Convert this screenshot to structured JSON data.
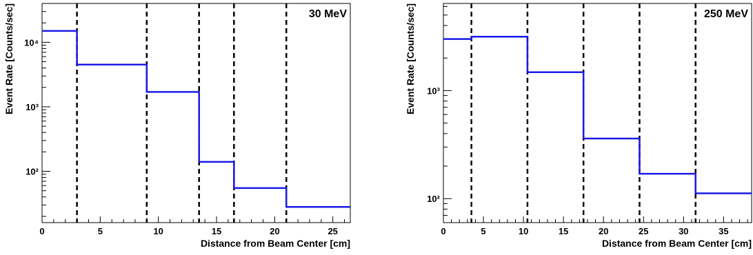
{
  "chart_data": [
    {
      "type": "step",
      "label": "30 MeV",
      "xlabel": "Distance from Beam Center [cm]",
      "ylabel": "Event Rate [Counts/sec]",
      "y_scale": "log",
      "xlim": [
        0,
        26.5
      ],
      "ylim": [
        16,
        40000
      ],
      "x_ticks": [
        0,
        5,
        10,
        15,
        20,
        25
      ],
      "x_tick_labels": [
        "0",
        "5",
        "10",
        "15",
        "20",
        "25"
      ],
      "y_ticks": [
        100,
        1000,
        10000
      ],
      "y_tick_labels": [
        "10²",
        "10³",
        "10⁴"
      ],
      "edges": [
        0,
        3,
        9,
        13.5,
        16.5,
        21,
        26.5
      ],
      "values": [
        15000,
        4500,
        1700,
        140,
        55,
        28
      ],
      "dashed_lines_x": [
        3,
        9,
        13.5,
        16.5,
        21
      ],
      "line_color": "#1a1ae6"
    },
    {
      "type": "step",
      "label": "250 MeV",
      "xlabel": "Distance from Beam Center [cm]",
      "ylabel": "Event Rate [Counts/sec]",
      "y_scale": "log",
      "xlim": [
        0,
        38.5
      ],
      "ylim": [
        60,
        6400
      ],
      "x_ticks": [
        0,
        5,
        10,
        15,
        20,
        25,
        30,
        35
      ],
      "x_tick_labels": [
        "0",
        "5",
        "10",
        "15",
        "20",
        "25",
        "30",
        "35"
      ],
      "y_ticks": [
        100,
        1000
      ],
      "y_tick_labels": [
        "10²",
        "10³"
      ],
      "edges": [
        0,
        3.5,
        10.5,
        17.5,
        24.5,
        31.5,
        38.5
      ],
      "values": [
        3000,
        3150,
        1480,
        360,
        170,
        112
      ],
      "dashed_lines_x": [
        3.5,
        10.5,
        17.5,
        24.5,
        31.5
      ],
      "line_color": "#1a1ae6"
    }
  ]
}
